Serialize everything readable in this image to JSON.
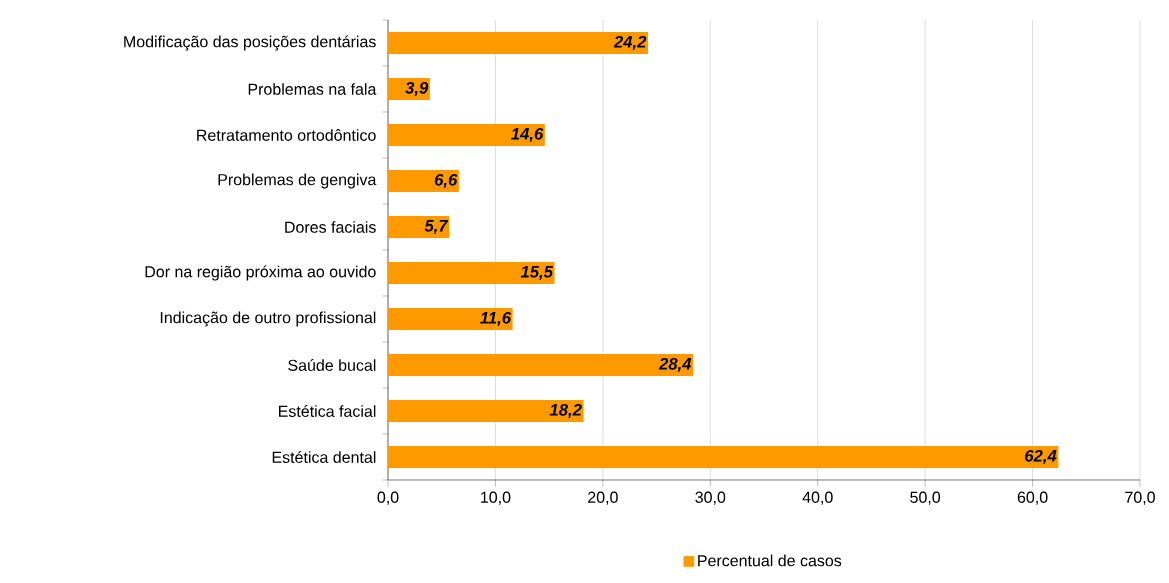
{
  "chart_data": {
    "type": "bar",
    "orientation": "horizontal",
    "categories": [
      "Modificação das posições dentárias",
      "Problemas na fala",
      "Retratamento ortodôntico",
      "Problemas de gengiva",
      "Dores faciais",
      "Dor na região próxima ao ouvido",
      "Indicação de outro profissional",
      "Saúde bucal",
      "Estética facial",
      "Estética dental"
    ],
    "series": [
      {
        "name": "Percentual de casos",
        "color": "#ff9900",
        "values": [
          24.2,
          3.9,
          14.6,
          6.6,
          5.7,
          15.5,
          11.6,
          28.4,
          18.2,
          62.4
        ],
        "value_labels": [
          "24,2",
          "3,9",
          "14,6",
          "6,6",
          "5,7",
          "15,5",
          "11,6",
          "28,4",
          "18,2",
          "62,4"
        ]
      }
    ],
    "xlim": [
      0,
      70
    ],
    "xticks": [
      {
        "value": 0,
        "label": "0,0"
      },
      {
        "value": 10,
        "label": "10,0"
      },
      {
        "value": 20,
        "label": "20,0"
      },
      {
        "value": 30,
        "label": "30,0"
      },
      {
        "value": 40,
        "label": "40,0"
      },
      {
        "value": 50,
        "label": "50,0"
      },
      {
        "value": 60,
        "label": "60,0"
      },
      {
        "value": 70,
        "label": "70,0"
      }
    ],
    "grid": "x",
    "legend": "bottom"
  }
}
